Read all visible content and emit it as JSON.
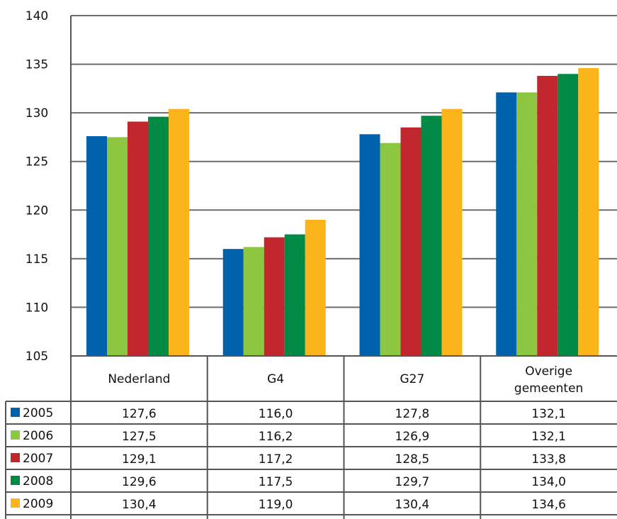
{
  "chart_data": {
    "type": "bar",
    "categories": [
      "Nederland",
      "G4",
      "G27",
      "Overige gemeenten"
    ],
    "category_lines": [
      [
        "Nederland"
      ],
      [
        "G4"
      ],
      [
        "G27"
      ],
      [
        "Overige",
        "gemeenten"
      ]
    ],
    "series": [
      {
        "name": "2005",
        "color": "#0062ac",
        "values": [
          127.6,
          116.0,
          127.8,
          132.1
        ],
        "labels": [
          "127,6",
          "116,0",
          "127,8",
          "132,1"
        ]
      },
      {
        "name": "2006",
        "color": "#8dc641",
        "values": [
          127.5,
          116.2,
          126.9,
          132.1
        ],
        "labels": [
          "127,5",
          "116,2",
          "126,9",
          "132,1"
        ]
      },
      {
        "name": "2007",
        "color": "#c1272d",
        "values": [
          129.1,
          117.2,
          128.5,
          133.8
        ],
        "labels": [
          "129,1",
          "117,2",
          "128,5",
          "133,8"
        ]
      },
      {
        "name": "2008",
        "color": "#008a45",
        "values": [
          129.6,
          117.5,
          129.7,
          134.0
        ],
        "labels": [
          "129,6",
          "117,5",
          "129,7",
          "134,0"
        ]
      },
      {
        "name": "2009",
        "color": "#fbb41a",
        "values": [
          130.4,
          119.0,
          130.4,
          134.6
        ],
        "labels": [
          "130,4",
          "119,0",
          "130,4",
          "134,6"
        ]
      }
    ],
    "ylim": [
      105,
      140
    ],
    "yticks": [
      "105",
      "110",
      "115",
      "120",
      "125",
      "130",
      "135",
      "140"
    ],
    "grid": true,
    "data_table": true,
    "title": "",
    "xlabel": "",
    "ylabel": ""
  }
}
